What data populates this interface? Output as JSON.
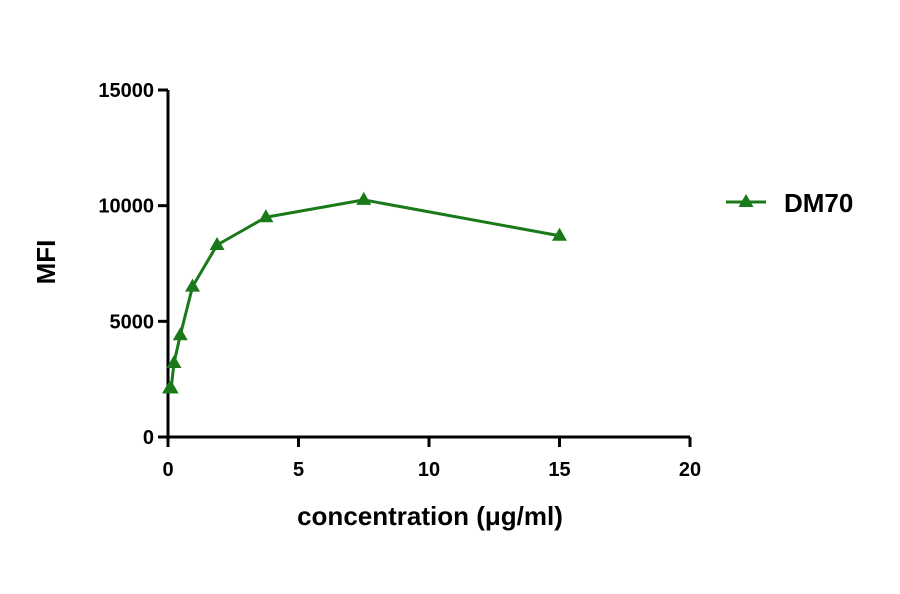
{
  "chart_data": {
    "type": "line",
    "title": "",
    "xlabel": "concentration (μg/ml)",
    "ylabel": "MFI",
    "xlim": [
      0,
      20
    ],
    "ylim": [
      0,
      15000
    ],
    "x_ticks": [
      0,
      5,
      10,
      15,
      20
    ],
    "y_ticks": [
      0,
      5000,
      10000,
      15000
    ],
    "x_tick_labels": [
      "0",
      "5",
      "10",
      "15",
      "20"
    ],
    "y_tick_labels": [
      "0",
      "5000",
      "10000",
      "15000"
    ],
    "grid": false,
    "legend_position": "right",
    "series": [
      {
        "name": "DM70",
        "color": "#1a7a1a",
        "marker": "triangle",
        "x": [
          0.06,
          0.12,
          0.23,
          0.47,
          0.94,
          1.88,
          3.75,
          7.5,
          15
        ],
        "y": [
          2100,
          2100,
          3200,
          4400,
          6500,
          8300,
          9500,
          10250,
          8700
        ]
      }
    ]
  }
}
